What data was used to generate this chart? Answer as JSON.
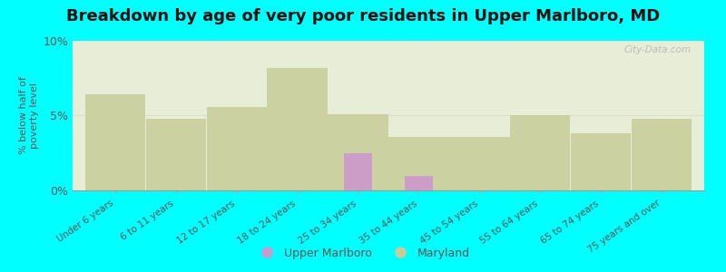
{
  "title": "Breakdown by age of very poor residents in Upper Marlboro, MD",
  "ylabel": "% below half of\npoverty level",
  "categories": [
    "Under 6 years",
    "6 to 11 years",
    "12 to 17 years",
    "18 to 24 years",
    "25 to 34 years",
    "35 to 44 years",
    "45 to 54 years",
    "55 to 64 years",
    "65 to 74 years",
    "75 years and over"
  ],
  "upper_marlboro": [
    0,
    0,
    0,
    0,
    2.5,
    1.0,
    0,
    0,
    0,
    0
  ],
  "maryland": [
    6.4,
    4.8,
    5.6,
    8.2,
    5.1,
    3.6,
    3.6,
    5.0,
    3.8,
    4.8
  ],
  "upper_marlboro_color": "#cc99cc",
  "maryland_color": "#c8cc99",
  "background_color": "#00ffff",
  "plot_bg_color": "#e8edd8",
  "ylim": [
    0,
    10
  ],
  "yticks": [
    0,
    5,
    10
  ],
  "ytick_labels": [
    "0%",
    "5%",
    "10%"
  ],
  "bar_width": 0.55,
  "title_fontsize": 13,
  "legend_upper_marlboro": "Upper Marlboro",
  "legend_maryland": "Maryland"
}
